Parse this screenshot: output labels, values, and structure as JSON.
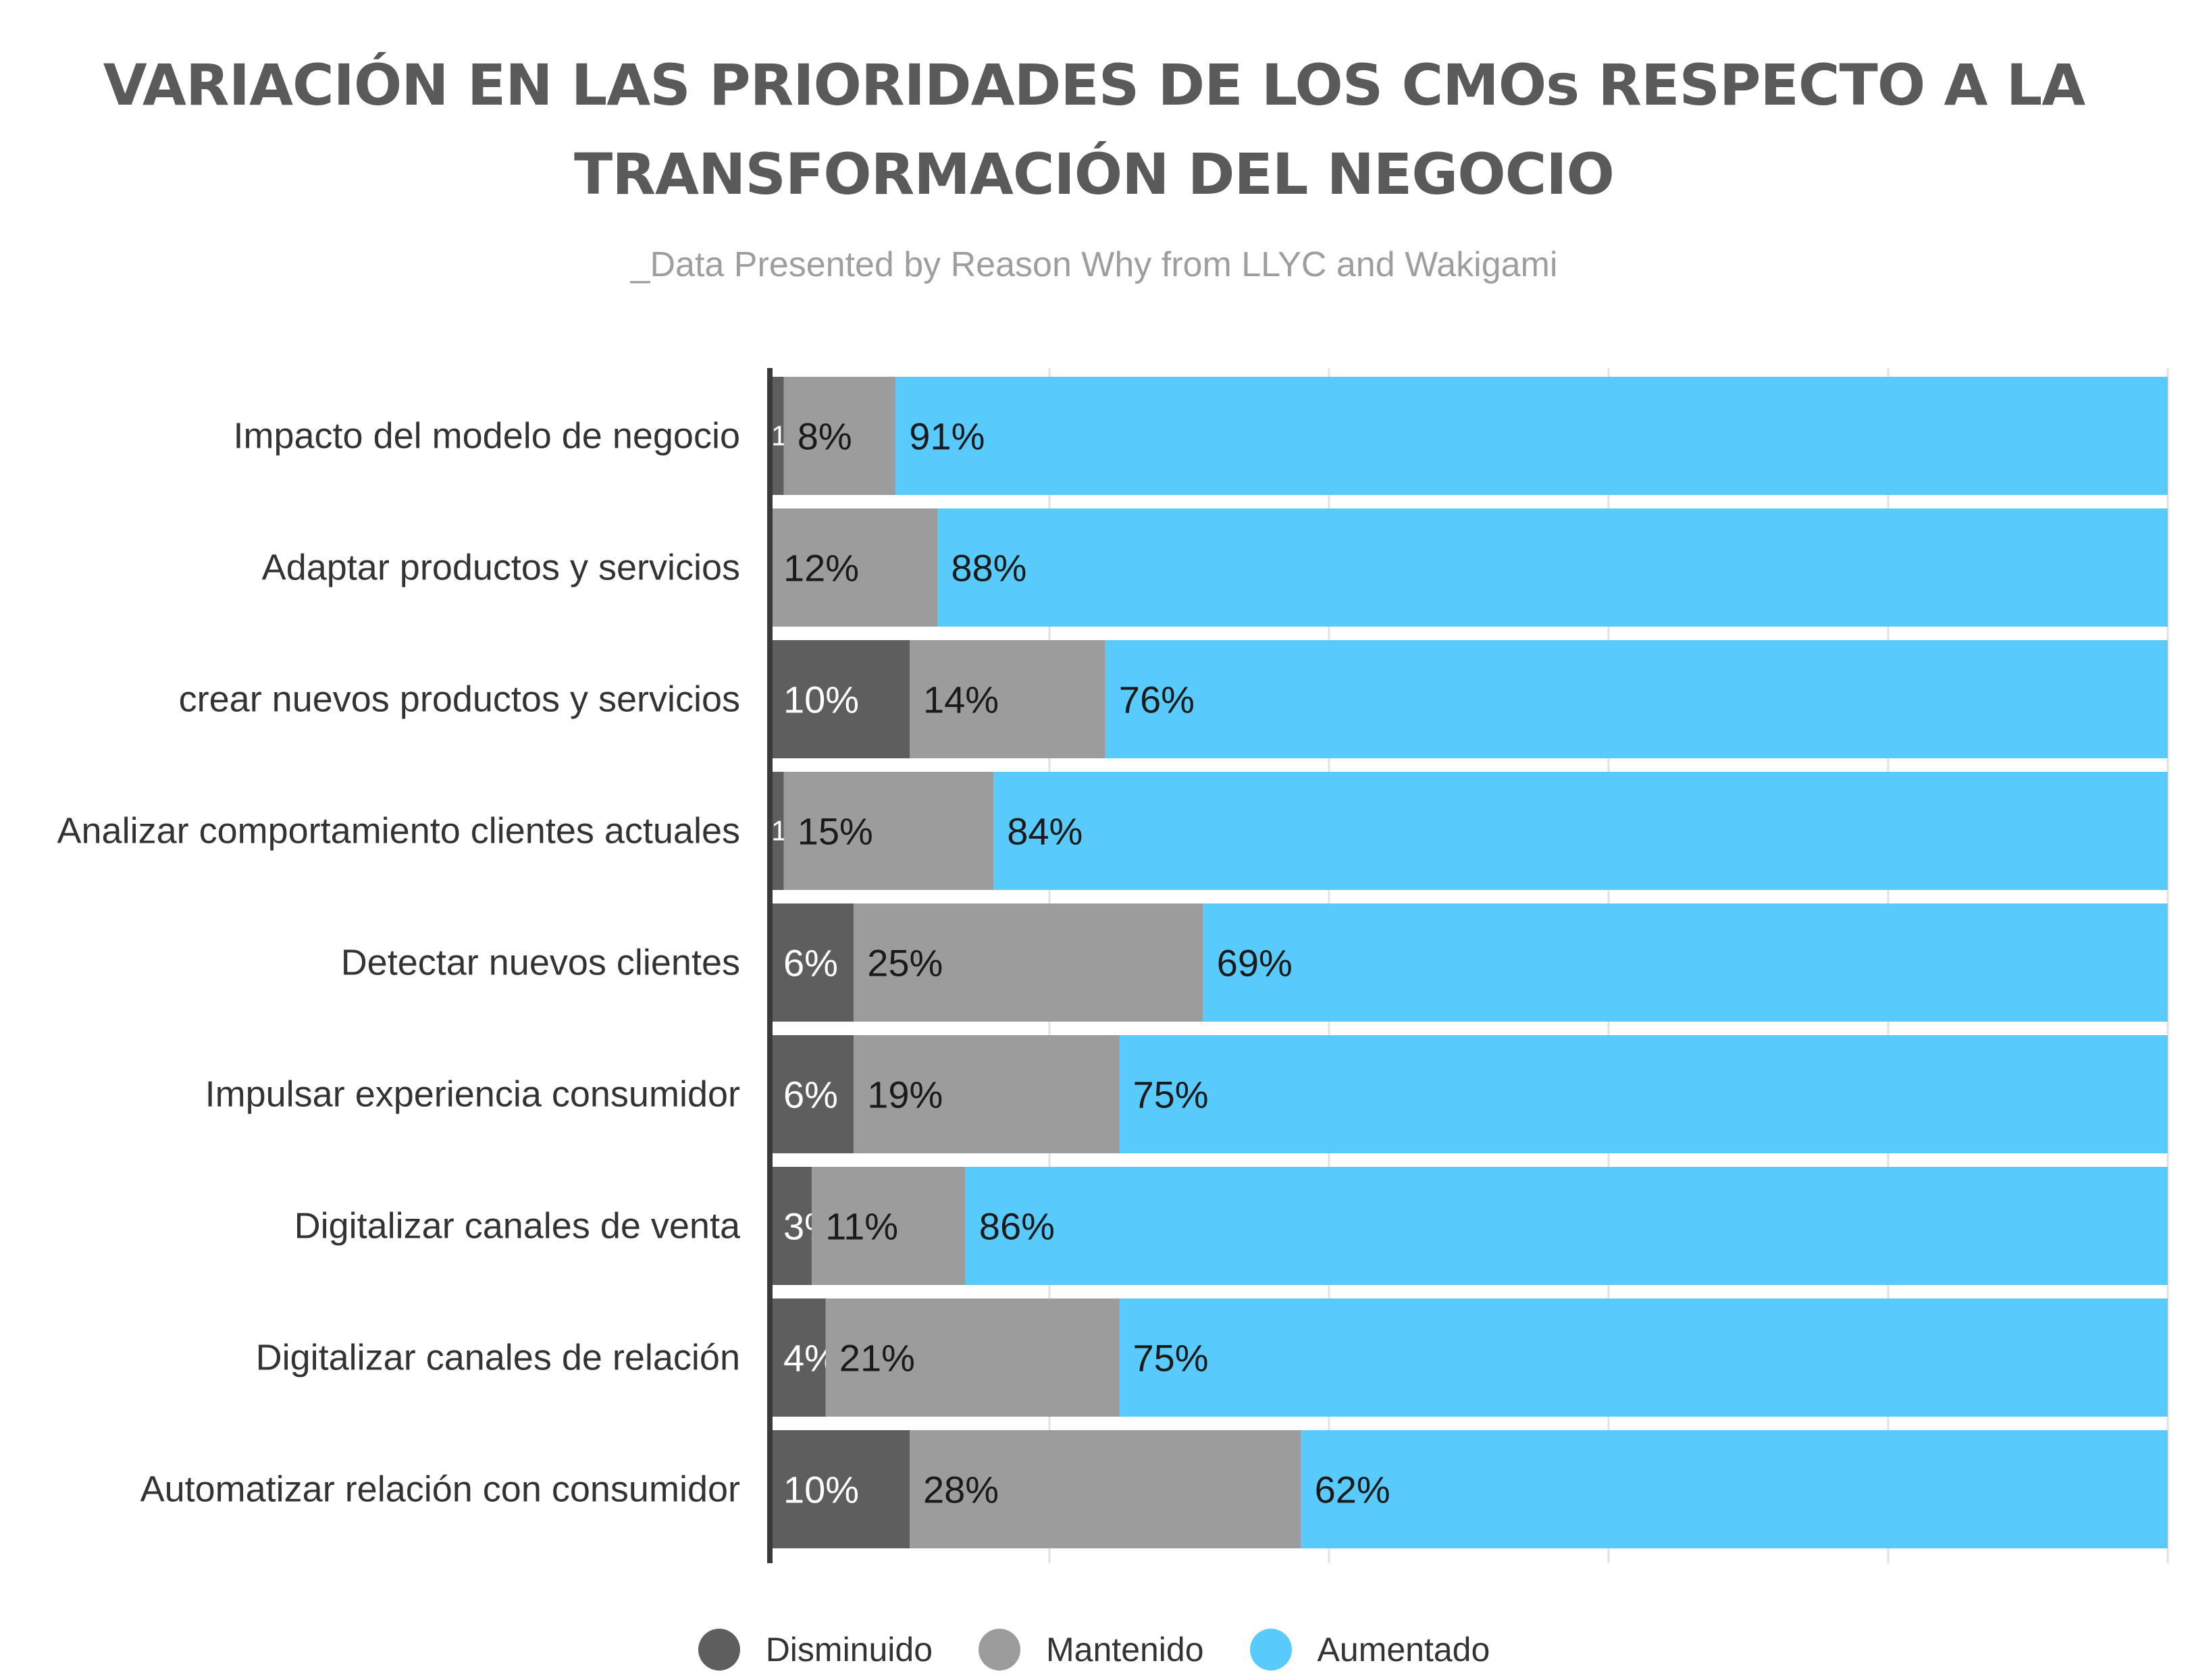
{
  "title_lines": [
    "VARIACIÓN EN LAS PRIORIDADES DE LOS CMOs RESPECTO A LA",
    "TRANSFORMACIÓN DEL NEGOCIO"
  ],
  "subtitle": "_Data Presented by Reason Why from LLYC and Wakigami",
  "colors": {
    "disminuido": "#5e5e5e",
    "mantenido": "#9c9c9c",
    "aumentado": "#58cbfc",
    "axis": "#3a3a3a",
    "grid": "#e2e2e2",
    "category_text": "#333333"
  },
  "chart_data": {
    "type": "bar",
    "orientation": "horizontal",
    "stacked": true,
    "normalized_percent": true,
    "categories": [
      "Impacto del modelo de negocio",
      "Adaptar productos y servicios",
      "crear nuevos productos y servicios",
      "Analizar comportamiento clientes actuales",
      "Detectar nuevos clientes",
      "Impulsar experiencia consumidor",
      "Digitalizar canales de venta",
      "Digitalizar canales de relación",
      "Automatizar relación con consumidor"
    ],
    "series": [
      {
        "name": "Disminuido",
        "values": [
          1,
          0,
          10,
          1,
          6,
          6,
          3,
          4,
          10
        ],
        "labels": [
          "1%",
          "",
          "10%",
          "1%",
          "6%",
          "6%",
          "3%",
          "4%",
          "10%"
        ]
      },
      {
        "name": "Mantenido",
        "values": [
          8,
          12,
          14,
          15,
          25,
          19,
          11,
          21,
          28
        ],
        "labels": [
          "8%",
          "12%",
          "14%",
          "15%",
          "25%",
          "19%",
          "11%",
          "21%",
          "28%"
        ]
      },
      {
        "name": "Aumentado",
        "values": [
          91,
          88,
          76,
          84,
          69,
          75,
          86,
          75,
          62
        ],
        "labels": [
          "91%",
          "88%",
          "76%",
          "84%",
          "69%",
          "75%",
          "86%",
          "75%",
          "62%"
        ]
      }
    ],
    "xlim": [
      0,
      100
    ],
    "grid": true,
    "legend_position": "bottom"
  }
}
